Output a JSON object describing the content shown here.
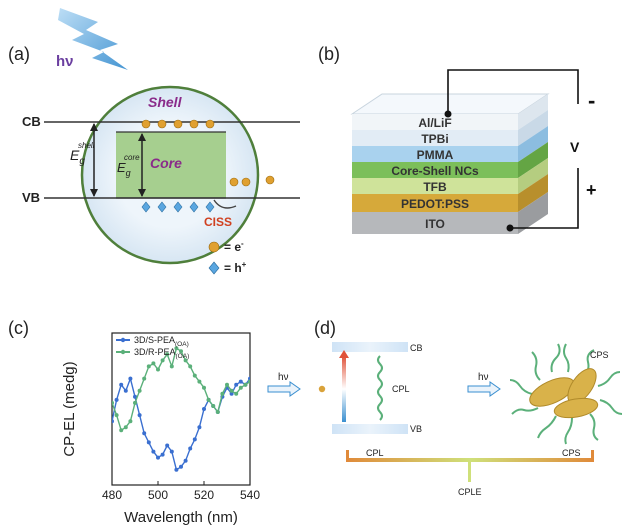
{
  "panels": {
    "a": {
      "label": "(a)",
      "photon": "hν",
      "shell": "Shell",
      "core": "Core",
      "cb": "CB",
      "vb": "VB",
      "eg_shell_main": "E",
      "eg_shell_sub": "g",
      "eg_shell_sup": "shell",
      "eg_core_main": "E",
      "eg_core_sub": "g",
      "eg_core_sup": "core",
      "ciss": "CISS",
      "legend_electron": "= e",
      "legend_electron_sup": "-",
      "legend_hole": "= h",
      "legend_hole_sup": "+"
    },
    "b": {
      "label": "(b)",
      "layers": [
        "Al/LiF",
        "TPBi",
        "PMMA",
        "Core-Shell NCs",
        "TFB",
        "PEDOT:PSS",
        "ITO"
      ],
      "minus": "-",
      "plus": "+",
      "v": "V"
    },
    "c": {
      "label": "(c)",
      "legend": [
        {
          "main": "3D/S-PEA",
          "sub": "(OA)",
          "color": "#3a6fd0"
        },
        {
          "main": "3D/R-PEA",
          "sub": "(OA)",
          "color": "#5bb07a"
        }
      ]
    },
    "d": {
      "label": "(d)",
      "hv_left": "hν",
      "hv_right": "hν",
      "cb": "CB",
      "vb": "VB",
      "cpl_mid": "CPL",
      "cps_right": "CPS",
      "bar_left": "CPL",
      "bar_right": "CPS",
      "bar_center": "CPLE"
    }
  },
  "chart_data": {
    "type": "line",
    "xlabel": "Wavelength (nm)",
    "ylabel": "CP-EL (medg)",
    "xlim": [
      480,
      540
    ],
    "x_ticks": [
      "480",
      "500",
      "520",
      "540"
    ],
    "y_ticks": [],
    "series": [
      {
        "name": "3D/S-PEA(OA)",
        "color": "#3a6fd0",
        "x": [
          480,
          482,
          484,
          486,
          488,
          490,
          492,
          494,
          496,
          498,
          500,
          502,
          504,
          506,
          508,
          510,
          512,
          514,
          516,
          518,
          520,
          522,
          524,
          526,
          528,
          530,
          532,
          534,
          536,
          538,
          540
        ],
        "y": [
          -0.2,
          0.15,
          0.4,
          0.3,
          0.5,
          0.2,
          -0.1,
          -0.4,
          -0.55,
          -0.7,
          -0.8,
          -0.75,
          -0.6,
          -0.7,
          -1.0,
          -0.95,
          -0.85,
          -0.65,
          -0.5,
          -0.3,
          0.0,
          0.15,
          0.05,
          -0.05,
          0.2,
          0.35,
          0.25,
          0.4,
          0.45,
          0.4,
          0.5
        ]
      },
      {
        "name": "3D/R-PEA(OA)",
        "color": "#5bb07a",
        "x": [
          480,
          482,
          484,
          486,
          488,
          490,
          492,
          494,
          496,
          498,
          500,
          502,
          504,
          506,
          508,
          510,
          512,
          514,
          516,
          518,
          520,
          522,
          524,
          526,
          528,
          530,
          532,
          534,
          536,
          538,
          540
        ],
        "y": [
          0.1,
          -0.1,
          -0.35,
          -0.3,
          -0.2,
          0.1,
          0.3,
          0.5,
          0.7,
          0.75,
          0.65,
          0.8,
          0.9,
          0.7,
          1.0,
          0.95,
          0.8,
          0.7,
          0.55,
          0.45,
          0.35,
          0.15,
          0.05,
          -0.05,
          0.25,
          0.4,
          0.3,
          0.25,
          0.35,
          0.4,
          0.45
        ]
      }
    ]
  }
}
